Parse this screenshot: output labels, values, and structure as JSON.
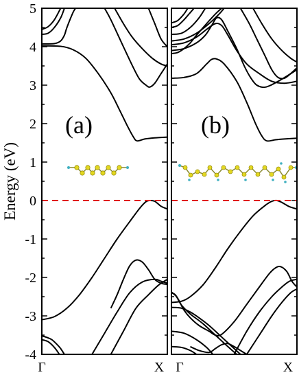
{
  "chart_data": {
    "type": "line",
    "ylabel": "Energy (eV)",
    "ylim": [
      -4,
      5
    ],
    "yticks": [
      5,
      4,
      3,
      2,
      1,
      0,
      -1,
      -2,
      -3,
      -4
    ],
    "grid": false,
    "fermi_level": 0,
    "fermi_color": "#e01010",
    "band_color": "#000000",
    "panels": [
      {
        "label": "(a)",
        "x_tick_labels": [
          "Γ",
          "X"
        ],
        "bands": [
          [
            [
              0.0,
              -3.1
            ],
            [
              0.1,
              -3.02
            ],
            [
              0.2,
              -2.8
            ],
            [
              0.3,
              -2.45
            ],
            [
              0.4,
              -2.0
            ],
            [
              0.5,
              -1.5
            ],
            [
              0.6,
              -1.0
            ],
            [
              0.7,
              -0.55
            ],
            [
              0.78,
              -0.2
            ],
            [
              0.83,
              -0.03
            ],
            [
              0.86,
              0.0
            ],
            [
              0.9,
              -0.02
            ],
            [
              0.95,
              -0.15
            ],
            [
              1.0,
              -0.22
            ]
          ],
          [
            [
              0.0,
              4.02
            ],
            [
              0.15,
              4.01
            ],
            [
              0.25,
              3.92
            ],
            [
              0.35,
              3.7
            ],
            [
              0.45,
              3.3
            ],
            [
              0.55,
              2.8
            ],
            [
              0.62,
              2.35
            ],
            [
              0.68,
              1.95
            ],
            [
              0.73,
              1.65
            ],
            [
              0.76,
              1.55
            ],
            [
              0.82,
              1.6
            ],
            [
              0.9,
              1.63
            ],
            [
              1.0,
              1.65
            ]
          ],
          [
            [
              0.0,
              4.07
            ],
            [
              0.1,
              4.08
            ],
            [
              0.15,
              4.15
            ],
            [
              0.18,
              4.3
            ],
            [
              0.2,
              4.5
            ],
            [
              0.25,
              4.9
            ],
            [
              0.27,
              5.0
            ]
          ],
          [
            [
              0.0,
              4.32
            ],
            [
              0.05,
              4.35
            ],
            [
              0.1,
              4.5
            ],
            [
              0.15,
              4.75
            ],
            [
              0.18,
              5.0
            ]
          ],
          [
            [
              0.0,
              4.45
            ],
            [
              0.05,
              4.52
            ],
            [
              0.1,
              4.7
            ],
            [
              0.15,
              5.0
            ]
          ],
          [
            [
              0.5,
              5.0
            ],
            [
              0.55,
              4.7
            ],
            [
              0.65,
              4.0
            ],
            [
              0.73,
              3.45
            ],
            [
              0.78,
              3.15
            ],
            [
              0.83,
              3.0
            ],
            [
              0.86,
              2.95
            ],
            [
              0.9,
              3.05
            ],
            [
              0.95,
              3.3
            ],
            [
              1.0,
              3.55
            ]
          ],
          [
            [
              0.58,
              5.0
            ],
            [
              0.65,
              4.6
            ],
            [
              0.72,
              4.25
            ],
            [
              0.8,
              3.95
            ],
            [
              0.88,
              3.7
            ],
            [
              0.95,
              3.55
            ],
            [
              1.0,
              3.5
            ]
          ],
          [
            [
              0.85,
              5.0
            ],
            [
              0.9,
              4.6
            ],
            [
              0.95,
              4.2
            ],
            [
              1.0,
              4.0
            ]
          ],
          [
            [
              0.55,
              -2.8
            ],
            [
              0.6,
              -2.45
            ],
            [
              0.65,
              -2.05
            ],
            [
              0.7,
              -1.7
            ],
            [
              0.75,
              -1.55
            ],
            [
              0.8,
              -1.6
            ],
            [
              0.85,
              -1.8
            ],
            [
              0.9,
              -2.05
            ],
            [
              0.95,
              -2.15
            ],
            [
              1.0,
              -2.18
            ]
          ],
          [
            [
              0.4,
              -4.0
            ],
            [
              0.5,
              -3.45
            ],
            [
              0.6,
              -2.9
            ],
            [
              0.7,
              -2.4
            ],
            [
              0.8,
              -2.12
            ],
            [
              0.9,
              -2.05
            ],
            [
              0.95,
              -2.1
            ],
            [
              1.0,
              -2.15
            ]
          ],
          [
            [
              0.55,
              -4.0
            ],
            [
              0.65,
              -3.4
            ],
            [
              0.75,
              -2.8
            ],
            [
              0.85,
              -2.45
            ],
            [
              0.93,
              -2.2
            ],
            [
              1.0,
              -2.05
            ]
          ],
          [
            [
              0.0,
              -3.52
            ],
            [
              0.04,
              -3.56
            ],
            [
              0.08,
              -3.62
            ],
            [
              0.12,
              -3.74
            ],
            [
              0.15,
              -3.85
            ],
            [
              0.18,
              -4.0
            ]
          ],
          [
            [
              0.0,
              -3.62
            ],
            [
              0.05,
              -3.67
            ],
            [
              0.1,
              -3.82
            ],
            [
              0.14,
              -4.0
            ]
          ]
        ]
      },
      {
        "label": "(b)",
        "x_tick_labels": [
          "Γ",
          "X"
        ],
        "bands": [
          [
            [
              0.0,
              -2.65
            ],
            [
              0.08,
              -2.62
            ],
            [
              0.15,
              -2.5
            ],
            [
              0.25,
              -2.2
            ],
            [
              0.35,
              -1.75
            ],
            [
              0.45,
              -1.25
            ],
            [
              0.55,
              -0.8
            ],
            [
              0.65,
              -0.4
            ],
            [
              0.75,
              -0.12
            ],
            [
              0.8,
              -0.02
            ],
            [
              0.84,
              0.0
            ],
            [
              0.88,
              -0.05
            ],
            [
              0.94,
              -0.16
            ],
            [
              1.0,
              -0.22
            ]
          ],
          [
            [
              0.0,
              3.18
            ],
            [
              0.1,
              3.2
            ],
            [
              0.2,
              3.3
            ],
            [
              0.28,
              3.55
            ],
            [
              0.32,
              3.67
            ],
            [
              0.36,
              3.68
            ],
            [
              0.42,
              3.55
            ],
            [
              0.52,
              3.1
            ],
            [
              0.6,
              2.55
            ],
            [
              0.67,
              2.0
            ],
            [
              0.72,
              1.68
            ],
            [
              0.76,
              1.55
            ],
            [
              0.83,
              1.58
            ],
            [
              0.9,
              1.6
            ],
            [
              1.0,
              1.62
            ]
          ],
          [
            [
              0.0,
              3.82
            ],
            [
              0.05,
              3.85
            ],
            [
              0.1,
              3.95
            ],
            [
              0.15,
              4.1
            ],
            [
              0.2,
              4.3
            ],
            [
              0.28,
              4.6
            ],
            [
              0.35,
              4.85
            ],
            [
              0.4,
              5.0
            ]
          ],
          [
            [
              0.0,
              3.9
            ],
            [
              0.1,
              3.95
            ],
            [
              0.2,
              4.1
            ],
            [
              0.27,
              4.3
            ],
            [
              0.32,
              4.55
            ],
            [
              0.36,
              4.75
            ],
            [
              0.4,
              4.7
            ],
            [
              0.45,
              4.4
            ],
            [
              0.52,
              3.95
            ],
            [
              0.58,
              3.5
            ],
            [
              0.63,
              3.2
            ],
            [
              0.68,
              3.0
            ],
            [
              0.75,
              2.95
            ],
            [
              0.85,
              3.1
            ],
            [
              1.0,
              3.4
            ]
          ],
          [
            [
              0.0,
              4.05
            ],
            [
              0.1,
              4.1
            ],
            [
              0.2,
              4.25
            ],
            [
              0.28,
              4.45
            ],
            [
              0.35,
              4.6
            ],
            [
              0.4,
              4.55
            ],
            [
              0.45,
              4.3
            ],
            [
              0.52,
              3.9
            ],
            [
              0.6,
              3.55
            ],
            [
              0.7,
              3.3
            ],
            [
              0.8,
              3.1
            ],
            [
              0.9,
              3.05
            ],
            [
              1.0,
              3.1
            ]
          ],
          [
            [
              0.0,
              4.15
            ],
            [
              0.1,
              4.2
            ],
            [
              0.2,
              4.35
            ],
            [
              0.3,
              4.6
            ],
            [
              0.38,
              4.85
            ],
            [
              0.42,
              5.0
            ]
          ],
          [
            [
              0.0,
              4.32
            ],
            [
              0.08,
              4.35
            ],
            [
              0.15,
              4.5
            ],
            [
              0.22,
              4.75
            ],
            [
              0.27,
              5.0
            ]
          ],
          [
            [
              0.0,
              4.5
            ],
            [
              0.05,
              4.55
            ],
            [
              0.1,
              4.7
            ],
            [
              0.14,
              4.85
            ],
            [
              0.18,
              5.0
            ]
          ],
          [
            [
              0.0,
              4.62
            ],
            [
              0.05,
              4.68
            ],
            [
              0.1,
              4.85
            ],
            [
              0.13,
              5.0
            ]
          ],
          [
            [
              0.55,
              5.0
            ],
            [
              0.62,
              4.6
            ],
            [
              0.68,
              4.2
            ],
            [
              0.74,
              3.8
            ],
            [
              0.8,
              3.4
            ],
            [
              0.85,
              3.2
            ],
            [
              0.9,
              3.18
            ],
            [
              0.95,
              3.3
            ],
            [
              1.0,
              3.45
            ]
          ],
          [
            [
              0.65,
              5.0
            ],
            [
              0.72,
              4.6
            ],
            [
              0.8,
              4.2
            ],
            [
              0.88,
              3.9
            ],
            [
              0.95,
              3.7
            ],
            [
              1.0,
              3.6
            ]
          ],
          [
            [
              0.0,
              -2.4
            ],
            [
              0.03,
              -2.45
            ],
            [
              0.06,
              -2.6
            ],
            [
              0.1,
              -2.85
            ],
            [
              0.15,
              -3.05
            ],
            [
              0.22,
              -3.25
            ],
            [
              0.3,
              -3.4
            ],
            [
              0.35,
              -3.5
            ],
            [
              0.4,
              -3.48
            ],
            [
              0.5,
              -3.15
            ],
            [
              0.6,
              -2.7
            ],
            [
              0.7,
              -2.25
            ],
            [
              0.78,
              -1.9
            ],
            [
              0.83,
              -1.75
            ],
            [
              0.87,
              -1.72
            ],
            [
              0.92,
              -1.85
            ],
            [
              0.96,
              -2.1
            ],
            [
              1.0,
              -2.25
            ]
          ],
          [
            [
              0.0,
              -2.38
            ],
            [
              0.04,
              -2.5
            ],
            [
              0.08,
              -2.72
            ],
            [
              0.15,
              -2.95
            ],
            [
              0.25,
              -3.2
            ],
            [
              0.35,
              -3.5
            ],
            [
              0.45,
              -3.8
            ],
            [
              0.52,
              -4.0
            ]
          ],
          [
            [
              0.0,
              -2.78
            ],
            [
              0.08,
              -2.8
            ],
            [
              0.15,
              -2.9
            ],
            [
              0.22,
              -3.05
            ],
            [
              0.3,
              -3.25
            ],
            [
              0.4,
              -3.55
            ],
            [
              0.5,
              -3.85
            ],
            [
              0.55,
              -4.0
            ]
          ],
          [
            [
              0.5,
              -4.0
            ],
            [
              0.6,
              -3.4
            ],
            [
              0.7,
              -2.9
            ],
            [
              0.8,
              -2.5
            ],
            [
              0.88,
              -2.25
            ],
            [
              0.94,
              -2.1
            ],
            [
              1.0,
              -2.05
            ]
          ],
          [
            [
              0.6,
              -4.0
            ],
            [
              0.7,
              -3.5
            ],
            [
              0.8,
              -3.0
            ],
            [
              0.88,
              -2.65
            ],
            [
              0.95,
              -2.4
            ],
            [
              1.0,
              -2.3
            ]
          ],
          [
            [
              0.0,
              -3.4
            ],
            [
              0.1,
              -3.45
            ],
            [
              0.2,
              -3.62
            ],
            [
              0.28,
              -3.82
            ],
            [
              0.33,
              -4.0
            ]
          ],
          [
            [
              0.0,
              -3.8
            ],
            [
              0.08,
              -3.82
            ],
            [
              0.15,
              -3.9
            ],
            [
              0.2,
              -4.0
            ]
          ],
          [
            [
              0.15,
              -3.8
            ],
            [
              0.22,
              -3.9
            ],
            [
              0.3,
              -3.95
            ],
            [
              0.35,
              -3.85
            ],
            [
              0.4,
              -3.75
            ],
            [
              0.45,
              -3.72
            ],
            [
              0.5,
              -3.8
            ],
            [
              0.55,
              -3.9
            ],
            [
              0.6,
              -4.0
            ]
          ]
        ]
      }
    ]
  }
}
